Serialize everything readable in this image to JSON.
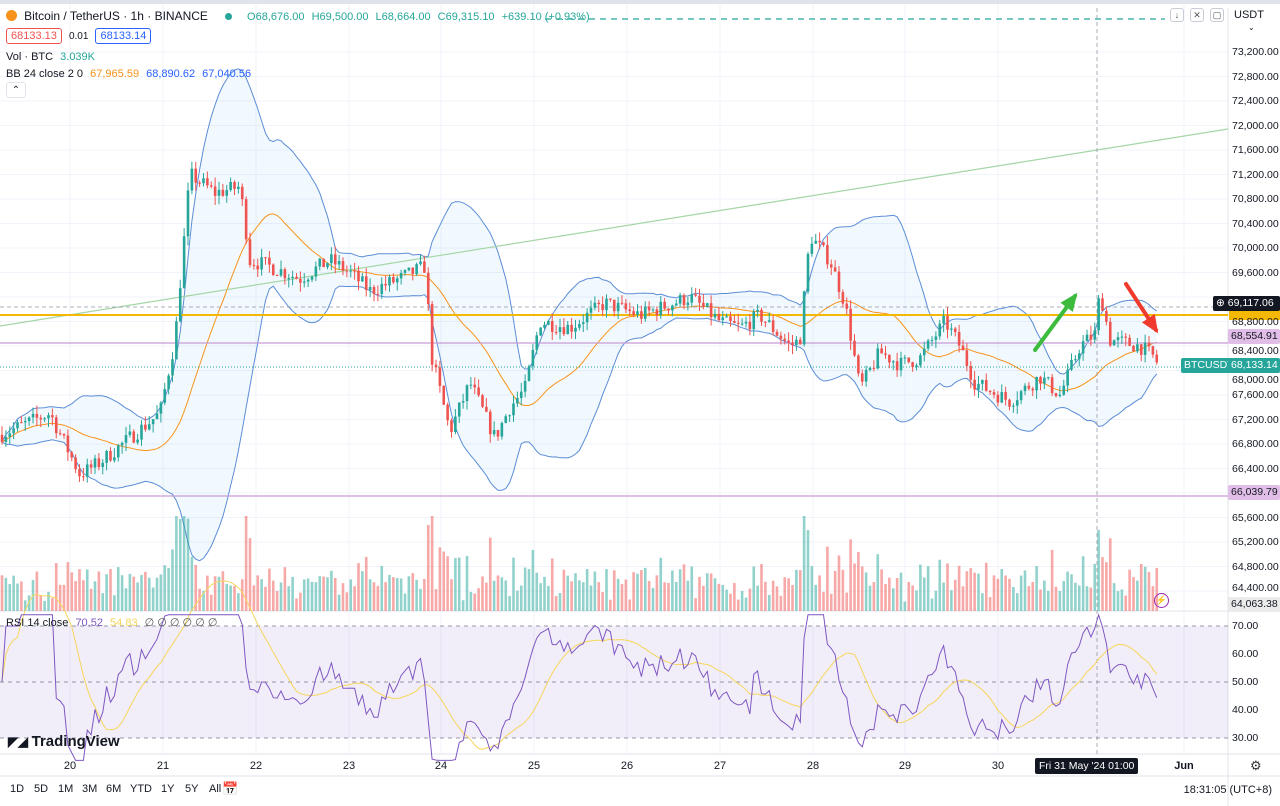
{
  "symbol": {
    "title": "Bitcoin / TetherUS · 1h · BINANCE",
    "open": "O68,676.00",
    "high": "H69,500.00",
    "low": "L68,664.00",
    "close": "C69,315.10",
    "change": "+639.10 (+0.93%)"
  },
  "quote": {
    "bid": "68133.13",
    "spread": "0.01",
    "ask": "68133.14"
  },
  "volume": {
    "label": "Vol · BTC",
    "value": "3.039K"
  },
  "bb": {
    "label": "BB 24 close 2 0",
    "basis": "67,965.59",
    "upper": "68,890.62",
    "lower": "67,040.56"
  },
  "rsi": {
    "label": "RSI 14 close",
    "value": "70.52",
    "ma": "54.83",
    "extra": "∅ ∅ ∅ ∅ ∅ ∅"
  },
  "currency": "USDT",
  "price_axis": [
    "73,200.00",
    "72,800.00",
    "72,400.00",
    "72,000.00",
    "71,600.00",
    "71,200.00",
    "70,800.00",
    "70,400.00",
    "70,000.00",
    "69,600.00",
    "68,800.00",
    "68,400.00",
    "68,000.00",
    "67,600.00",
    "67,200.00",
    "66,800.00",
    "66,400.00",
    "65,600.00",
    "65,200.00",
    "64,800.00",
    "64,400.00"
  ],
  "price_tags": {
    "crosshair": "69,117.06",
    "level_purple_1": "68,554.91",
    "symbol": "BTCUSDT",
    "last": "68,133.14",
    "level_purple_2": "66,039.79",
    "volume_low": "64,063.38"
  },
  "rsi_axis": [
    "70.00",
    "60.00",
    "50.00",
    "40.00",
    "30.00"
  ],
  "time_axis": [
    "20",
    "21",
    "22",
    "23",
    "24",
    "25",
    "26",
    "27",
    "28",
    "29",
    "30",
    "Jun"
  ],
  "crosshair_time": "Fri 31 May '24   01:00",
  "timeframes": [
    "1D",
    "5D",
    "1M",
    "3M",
    "6M",
    "YTD",
    "1Y",
    "5Y",
    "All"
  ],
  "clock": "18:31:05 (UTC+8)",
  "brand": "TradingView",
  "colors": {
    "up": "#26a69a",
    "down": "#ef5350",
    "bb": "#5b8dd6",
    "basis": "#f7931a",
    "level": "#f5b800",
    "purple": "#c79ad6",
    "trend": "#a5d6a7",
    "rsi": "#7e57c2",
    "rsi_ma": "#f6d55c"
  }
}
